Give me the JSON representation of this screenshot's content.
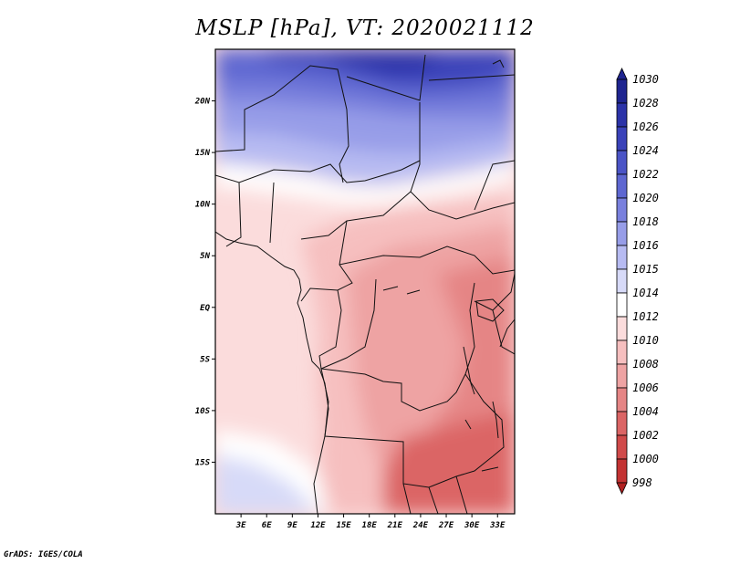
{
  "title": "MSLP [hPa], VT: 2020021112",
  "credit": "GrADS: IGES/COLA",
  "chart_data": {
    "type": "heatmap",
    "title": "MSLP [hPa], VT: 2020021112",
    "variable": "Mean sea level pressure",
    "units": "hPa",
    "valid_time": "2020021112",
    "lon_range": [
      0,
      35
    ],
    "lat_range": [
      -20,
      25
    ],
    "x_ticks": [
      {
        "value": 3,
        "label": "3E"
      },
      {
        "value": 6,
        "label": "6E"
      },
      {
        "value": 9,
        "label": "9E"
      },
      {
        "value": 12,
        "label": "12E"
      },
      {
        "value": 15,
        "label": "15E"
      },
      {
        "value": 18,
        "label": "18E"
      },
      {
        "value": 21,
        "label": "21E"
      },
      {
        "value": 24,
        "label": "24E"
      },
      {
        "value": 27,
        "label": "27E"
      },
      {
        "value": 30,
        "label": "30E"
      },
      {
        "value": 33,
        "label": "33E"
      }
    ],
    "y_ticks": [
      {
        "value": 20,
        "label": "20N"
      },
      {
        "value": 15,
        "label": "15N"
      },
      {
        "value": 10,
        "label": "10N"
      },
      {
        "value": 5,
        "label": "5N"
      },
      {
        "value": 0,
        "label": "EQ"
      },
      {
        "value": -5,
        "label": "5S"
      },
      {
        "value": -10,
        "label": "10S"
      },
      {
        "value": -15,
        "label": "15S"
      }
    ],
    "colorbar": {
      "levels": [
        "1030",
        "1028",
        "1026",
        "1024",
        "1022",
        "1020",
        "1018",
        "1016",
        "1015",
        "1014",
        "1012",
        "1010",
        "1008",
        "1006",
        "1004",
        "1002",
        "1000",
        "998"
      ],
      "colors": [
        "#1f2590",
        "#2c33a8",
        "#3a42b9",
        "#4b54c6",
        "#5e67d1",
        "#7980dd",
        "#979de8",
        "#b7bbf2",
        "#d7daf8",
        "#ffffff",
        "#fbdcdc",
        "#f6bfbf",
        "#eea3a3",
        "#e58585",
        "#db6565",
        "#d04a4a",
        "#c33333",
        "#b02020"
      ]
    },
    "approximate_values": [
      {
        "lon": 18,
        "lat": 22,
        "value": 1027
      },
      {
        "lon": 5,
        "lat": 18,
        "value": 1022
      },
      {
        "lon": 30,
        "lat": 15,
        "value": 1019
      },
      {
        "lon": 8,
        "lat": 11,
        "value": 1015
      },
      {
        "lon": 5,
        "lat": 0,
        "value": 1013
      },
      {
        "lon": 22,
        "lat": 2,
        "value": 1010
      },
      {
        "lon": 30,
        "lat": -5,
        "value": 1008
      },
      {
        "lon": 30,
        "lat": -18,
        "value": 1005
      }
    ]
  }
}
